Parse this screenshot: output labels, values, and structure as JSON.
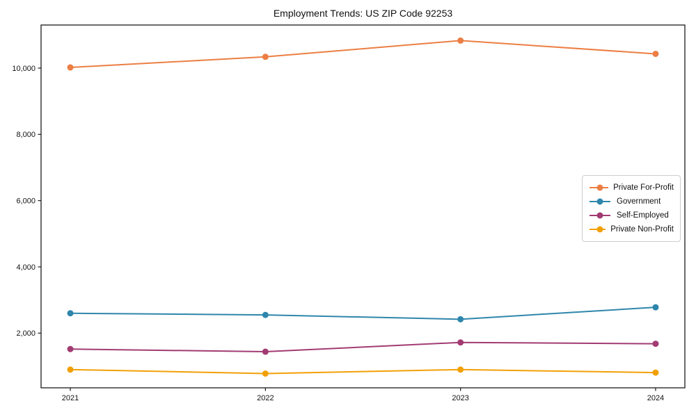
{
  "chart_data": {
    "type": "line",
    "title": "Employment Trends: US ZIP Code 92253",
    "x": [
      2021,
      2022,
      2023,
      2024
    ],
    "series": [
      {
        "name": "Private For-Profit",
        "color": "#ec7e43",
        "values": [
          10020,
          10340,
          10830,
          10430
        ]
      },
      {
        "name": "Government",
        "color": "#2e86ab",
        "values": [
          2600,
          2550,
          2420,
          2780
        ]
      },
      {
        "name": "Self-Employed",
        "color": "#a23b72",
        "values": [
          1520,
          1440,
          1720,
          1680
        ]
      },
      {
        "name": "Private Non-Profit",
        "color": "#f2a007",
        "values": [
          900,
          780,
          900,
          810
        ]
      }
    ],
    "xlabel": "",
    "ylabel": "",
    "yticks": [
      2000,
      4000,
      6000,
      8000,
      10000
    ],
    "ylim": [
      350,
      11300
    ],
    "xlim": [
      2020.85,
      2024.15
    ],
    "grid": false,
    "legend_position": "center-right",
    "marker": "circle",
    "line_width": 2,
    "marker_radius": 4.5,
    "frame_color": "#1a1a1a",
    "background": "#ffffff"
  }
}
